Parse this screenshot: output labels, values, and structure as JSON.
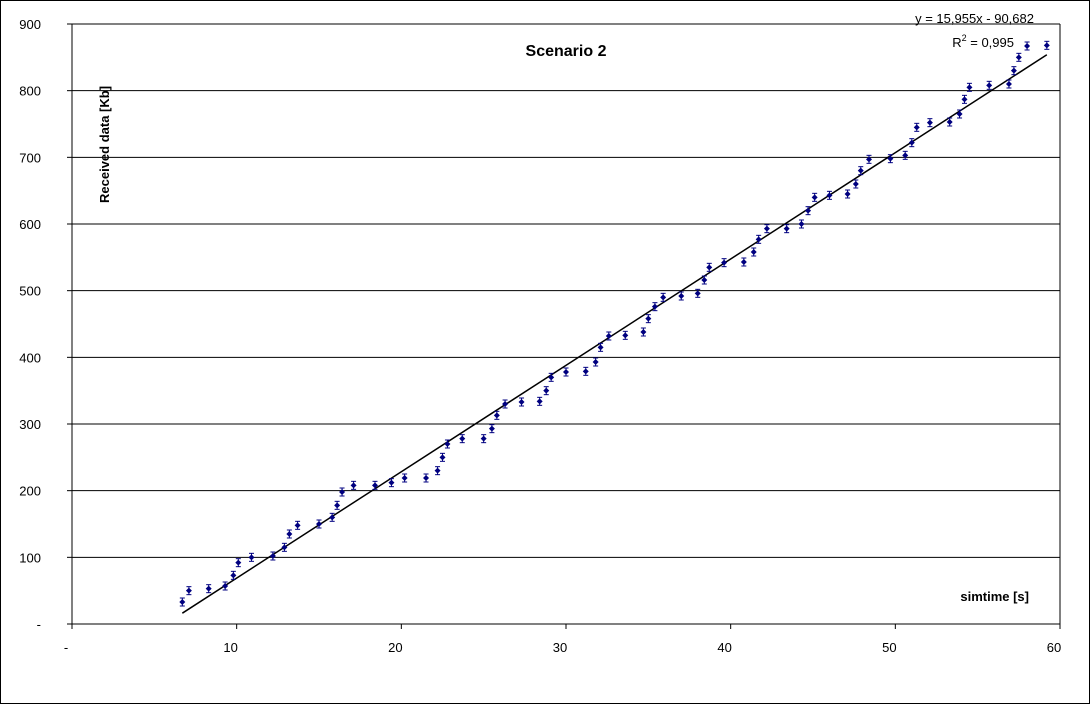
{
  "chart_data": {
    "type": "scatter",
    "title": "Scenario 2",
    "xlabel": "simtime [s]",
    "ylabel": "Received data [Kb]",
    "xlim": [
      0,
      60
    ],
    "ylim": [
      0,
      900
    ],
    "x_ticks": [
      "-",
      "10",
      "20",
      "30",
      "40",
      "50",
      "60"
    ],
    "y_ticks": [
      "-",
      "100",
      "200",
      "300",
      "400",
      "500",
      "600",
      "700",
      "800",
      "900"
    ],
    "grid": "horizontal",
    "marker_color": "#000080",
    "trendline": {
      "slope": 15.955,
      "intercept": -90.682,
      "equation": "y = 15,955x - 90,682",
      "r2_prefix": "R",
      "r2_sup": "2",
      "r2_value": " = 0,995"
    },
    "series": [
      {
        "points": [
          [
            6.7,
            33
          ],
          [
            7.1,
            50
          ],
          [
            8.3,
            53
          ],
          [
            9.3,
            57
          ],
          [
            9.8,
            73
          ],
          [
            10.1,
            92
          ],
          [
            10.9,
            100
          ],
          [
            12.2,
            102
          ],
          [
            12.9,
            115
          ],
          [
            13.2,
            135
          ],
          [
            13.7,
            148
          ],
          [
            15.0,
            150
          ],
          [
            15.8,
            160
          ],
          [
            16.1,
            178
          ],
          [
            16.4,
            198
          ],
          [
            17.1,
            208
          ],
          [
            18.4,
            208
          ],
          [
            19.4,
            212
          ],
          [
            20.2,
            219
          ],
          [
            21.5,
            219
          ],
          [
            22.2,
            230
          ],
          [
            22.5,
            250
          ],
          [
            22.8,
            270
          ],
          [
            23.7,
            278
          ],
          [
            25.0,
            278
          ],
          [
            25.5,
            293
          ],
          [
            25.8,
            313
          ],
          [
            26.3,
            330
          ],
          [
            27.3,
            333
          ],
          [
            28.4,
            334
          ],
          [
            28.8,
            350
          ],
          [
            29.1,
            370
          ],
          [
            30.0,
            378
          ],
          [
            31.2,
            379
          ],
          [
            31.8,
            393
          ],
          [
            32.1,
            415
          ],
          [
            32.6,
            432
          ],
          [
            33.6,
            433
          ],
          [
            34.7,
            438
          ],
          [
            35.0,
            458
          ],
          [
            35.4,
            476
          ],
          [
            35.9,
            490
          ],
          [
            37.0,
            492
          ],
          [
            38.0,
            496
          ],
          [
            38.4,
            516
          ],
          [
            38.7,
            535
          ],
          [
            39.6,
            542
          ],
          [
            40.8,
            543
          ],
          [
            41.4,
            558
          ],
          [
            41.7,
            577
          ],
          [
            42.2,
            593
          ],
          [
            43.4,
            593
          ],
          [
            44.3,
            600
          ],
          [
            44.7,
            620
          ],
          [
            45.1,
            640
          ],
          [
            46.0,
            643
          ],
          [
            47.1,
            645
          ],
          [
            47.6,
            660
          ],
          [
            47.9,
            680
          ],
          [
            48.4,
            697
          ],
          [
            49.7,
            698
          ],
          [
            50.6,
            703
          ],
          [
            51.0,
            722
          ],
          [
            51.3,
            745
          ],
          [
            52.1,
            752
          ],
          [
            53.3,
            753
          ],
          [
            53.9,
            765
          ],
          [
            54.2,
            787
          ],
          [
            54.5,
            805
          ],
          [
            55.7,
            808
          ],
          [
            56.9,
            810
          ],
          [
            57.2,
            830
          ],
          [
            57.5,
            850
          ],
          [
            58.0,
            867
          ],
          [
            59.2,
            868
          ]
        ]
      }
    ]
  }
}
